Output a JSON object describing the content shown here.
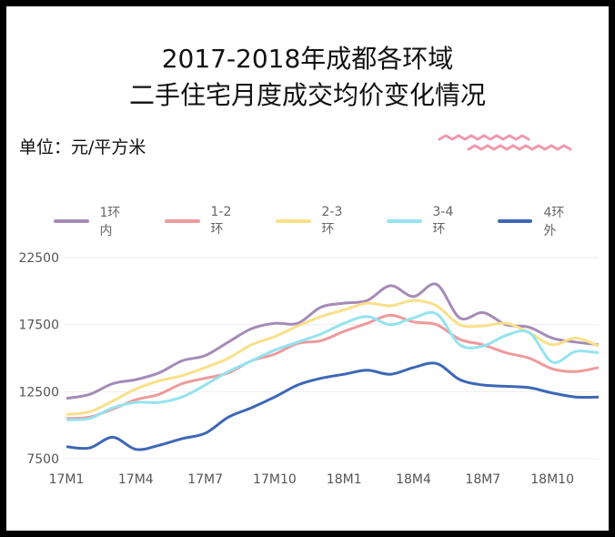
{
  "title_line1": "2017-2018年成都各环域",
  "title_line2": "二手住宅月度成交均价变化情况",
  "unit_label": "单位：元/平方米",
  "chart_data": {
    "type": "line",
    "title": "2017-2018年成都各环域二手住宅月度成交均价变化情况",
    "ylabel": "单位：元/平方米",
    "xlabel": "",
    "ylim": [
      7500,
      22500
    ],
    "yticks": [
      7500,
      12500,
      17500,
      22500
    ],
    "categories": [
      "17M1",
      "17M2",
      "17M3",
      "17M4",
      "17M5",
      "17M6",
      "17M7",
      "17M8",
      "17M9",
      "17M10",
      "17M11",
      "17M12",
      "18M1",
      "18M2",
      "18M3",
      "18M4",
      "18M5",
      "18M6",
      "18M7",
      "18M8",
      "18M9",
      "18M10",
      "18M11",
      "18M12"
    ],
    "x_tick_labels": [
      "17M1",
      "17M4",
      "17M7",
      "17M10",
      "18M1",
      "18M4",
      "18M7",
      "18M10"
    ],
    "series": [
      {
        "name": "1环内",
        "color": "#A58BB8",
        "values": [
          12000,
          12300,
          13100,
          13400,
          13900,
          14800,
          15200,
          16200,
          17200,
          17600,
          17600,
          18800,
          19100,
          19300,
          20400,
          19600,
          20500,
          18000,
          18400,
          17500,
          17300,
          16500,
          16200,
          16000
        ]
      },
      {
        "name": "1-2环",
        "color": "#EE9A9C",
        "values": [
          10500,
          10600,
          11200,
          11900,
          12300,
          13100,
          13500,
          13900,
          14800,
          15300,
          16100,
          16300,
          17000,
          17600,
          18200,
          17700,
          17500,
          16400,
          16000,
          15400,
          15000,
          14200,
          14000,
          14300
        ]
      },
      {
        "name": "2-3环",
        "color": "#F9E08A",
        "values": [
          10800,
          11000,
          11800,
          12700,
          13300,
          13700,
          14300,
          15000,
          16000,
          16600,
          17400,
          18100,
          18600,
          19100,
          18900,
          19300,
          18900,
          17500,
          17400,
          17600,
          16900,
          16000,
          16500,
          15900
        ]
      },
      {
        "name": "3-4环",
        "color": "#94E3EF",
        "values": [
          10400,
          10500,
          11300,
          11700,
          11700,
          12100,
          13000,
          14000,
          14800,
          15600,
          16200,
          16800,
          17600,
          18100,
          17500,
          18000,
          18300,
          16000,
          15900,
          16700,
          16900,
          14700,
          15500,
          15400
        ]
      },
      {
        "name": "4环外",
        "color": "#3E67B6",
        "values": [
          8400,
          8300,
          9100,
          8200,
          8500,
          9000,
          9400,
          10600,
          11300,
          12100,
          13000,
          13500,
          13800,
          14100,
          13800,
          14300,
          14600,
          13400,
          13000,
          12900,
          12800,
          12400,
          12100,
          12100
        ]
      }
    ]
  }
}
